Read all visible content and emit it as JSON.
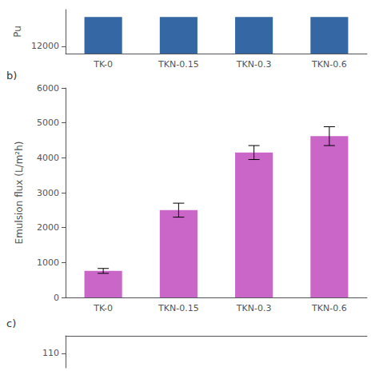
{
  "chart_data": [
    {
      "type": "bar",
      "categories": [
        "TK-0",
        "TKN-0.15",
        "TKN-0.3",
        "TKN-0.6"
      ],
      "values": [
        14000,
        14000,
        14000,
        14000
      ],
      "color": "#3567A5",
      "ylabel": "Pu",
      "ylim": [
        11500,
        14500
      ],
      "yticks": [
        12000
      ],
      "grid": false
    },
    {
      "type": "bar",
      "categories": [
        "TK-0",
        "TKN-0.15",
        "TKN-0.3",
        "TKN-0.6"
      ],
      "values": [
        760,
        2500,
        4150,
        4620
      ],
      "errors": [
        70,
        200,
        200,
        270
      ],
      "color": "#C966C8",
      "ylabel": "Emulsion flux (L/m²h)",
      "ylim": [
        0,
        6000
      ],
      "yticks": [
        0,
        1000,
        2000,
        3000,
        4000,
        5000,
        6000
      ],
      "annotation": "b)",
      "grid": false
    },
    {
      "type": "empty",
      "xlim": [
        0,
        10
      ],
      "ylim": [
        105,
        116
      ],
      "yticks": [
        110
      ],
      "annotation": "c)",
      "tick_labels": "y",
      "grid": false
    }
  ]
}
